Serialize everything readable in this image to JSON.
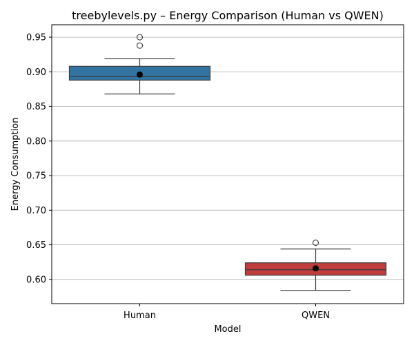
{
  "chart_data": {
    "type": "box",
    "title": "treebylevels.py – Energy Comparison (Human vs QWEN)",
    "xlabel": "Model",
    "ylabel": "Energy Consumption",
    "ylim": [
      0.565,
      0.968
    ],
    "yticks": [
      "0.60",
      "0.65",
      "0.70",
      "0.75",
      "0.80",
      "0.85",
      "0.90",
      "0.95"
    ],
    "grid": "horizontal",
    "categories": [
      "Human",
      "QWEN"
    ],
    "boxes": [
      {
        "name": "Human",
        "color": "#3274a1",
        "whisker_low": 0.868,
        "q1": 0.888,
        "median": 0.893,
        "q3": 0.908,
        "whisker_high": 0.919,
        "mean": 0.896,
        "outliers": [
          0.938,
          0.95
        ]
      },
      {
        "name": "QWEN",
        "color": "#c03d3e",
        "whisker_low": 0.584,
        "q1": 0.606,
        "median": 0.614,
        "q3": 0.624,
        "whisker_high": 0.644,
        "mean": 0.616,
        "outliers": [
          0.653
        ]
      }
    ]
  }
}
